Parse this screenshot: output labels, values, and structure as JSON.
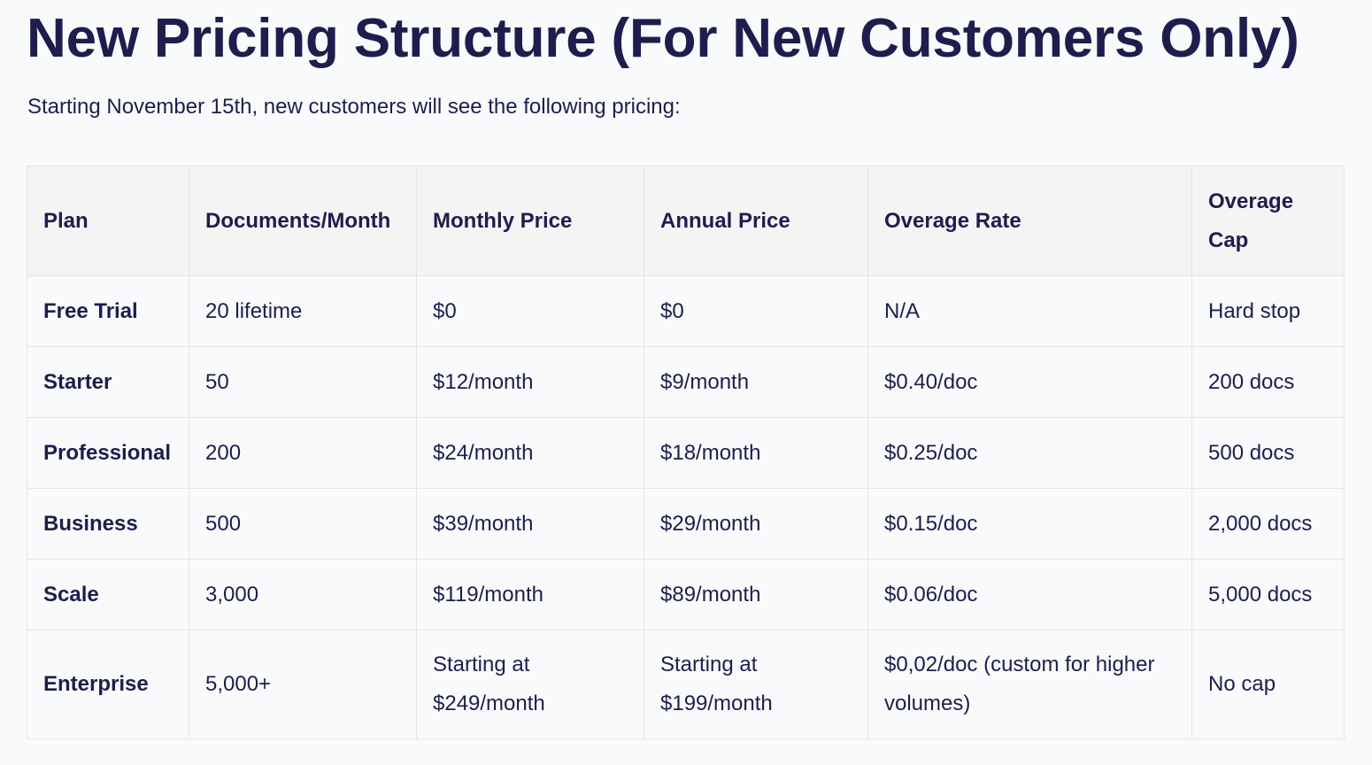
{
  "document": {
    "title": "New Pricing Structure (For New Customers Only)",
    "intro": "Starting November 15th, new customers will see the following pricing:"
  },
  "pricing_table": {
    "headers": {
      "plan": "Plan",
      "documents_month": "Documents/Month",
      "monthly_price": "Monthly Price",
      "annual_price": "Annual Price",
      "overage_rate": "Overage Rate",
      "overage_cap": "Overage Cap"
    },
    "rows": [
      {
        "plan": "Free Trial",
        "documents_month": "20 lifetime",
        "monthly_price": "$0",
        "annual_price": "$0",
        "overage_rate": "N/A",
        "overage_cap": "Hard stop"
      },
      {
        "plan": "Starter",
        "documents_month": "50",
        "monthly_price": "$12/month",
        "annual_price": "$9/month",
        "overage_rate": "$0.40/doc",
        "overage_cap": "200 docs"
      },
      {
        "plan": "Professional",
        "documents_month": "200",
        "monthly_price": "$24/month",
        "annual_price": "$18/month",
        "overage_rate": "$0.25/doc",
        "overage_cap": "500 docs"
      },
      {
        "plan": "Business",
        "documents_month": "500",
        "monthly_price": "$39/month",
        "annual_price": "$29/month",
        "overage_rate": "$0.15/doc",
        "overage_cap": "2,000 docs"
      },
      {
        "plan": "Scale",
        "documents_month": "3,000",
        "monthly_price": "$119/month",
        "annual_price": "$89/month",
        "overage_rate": "$0.06/doc",
        "overage_cap": "5,000 docs"
      },
      {
        "plan": "Enterprise",
        "documents_month": "5,000+",
        "monthly_price": "Starting at $249/month",
        "annual_price": "Starting at $199/month",
        "overage_rate": "$0,02/doc (custom for higher volumes)",
        "overage_cap": "No cap"
      }
    ]
  }
}
